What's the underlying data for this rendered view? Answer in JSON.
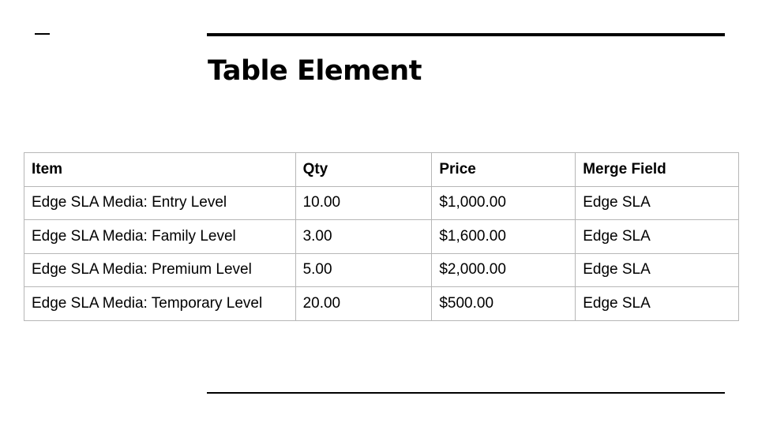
{
  "slide": {
    "title": "Table Element",
    "table": {
      "headers": [
        "Item",
        "Qty",
        "Price",
        "Merge Field"
      ],
      "rows": [
        [
          "Edge SLA Media: Entry Level",
          "10.00",
          "$1,000.00",
          "Edge SLA"
        ],
        [
          "Edge SLA Media: Family Level",
          "3.00",
          "$1,600.00",
          "Edge SLA"
        ],
        [
          "Edge SLA Media: Premium Level",
          "5.00",
          "$2,000.00",
          "Edge SLA"
        ],
        [
          "Edge SLA Media: Temporary Level",
          "20.00",
          "$500.00",
          "Edge SLA"
        ]
      ]
    }
  }
}
